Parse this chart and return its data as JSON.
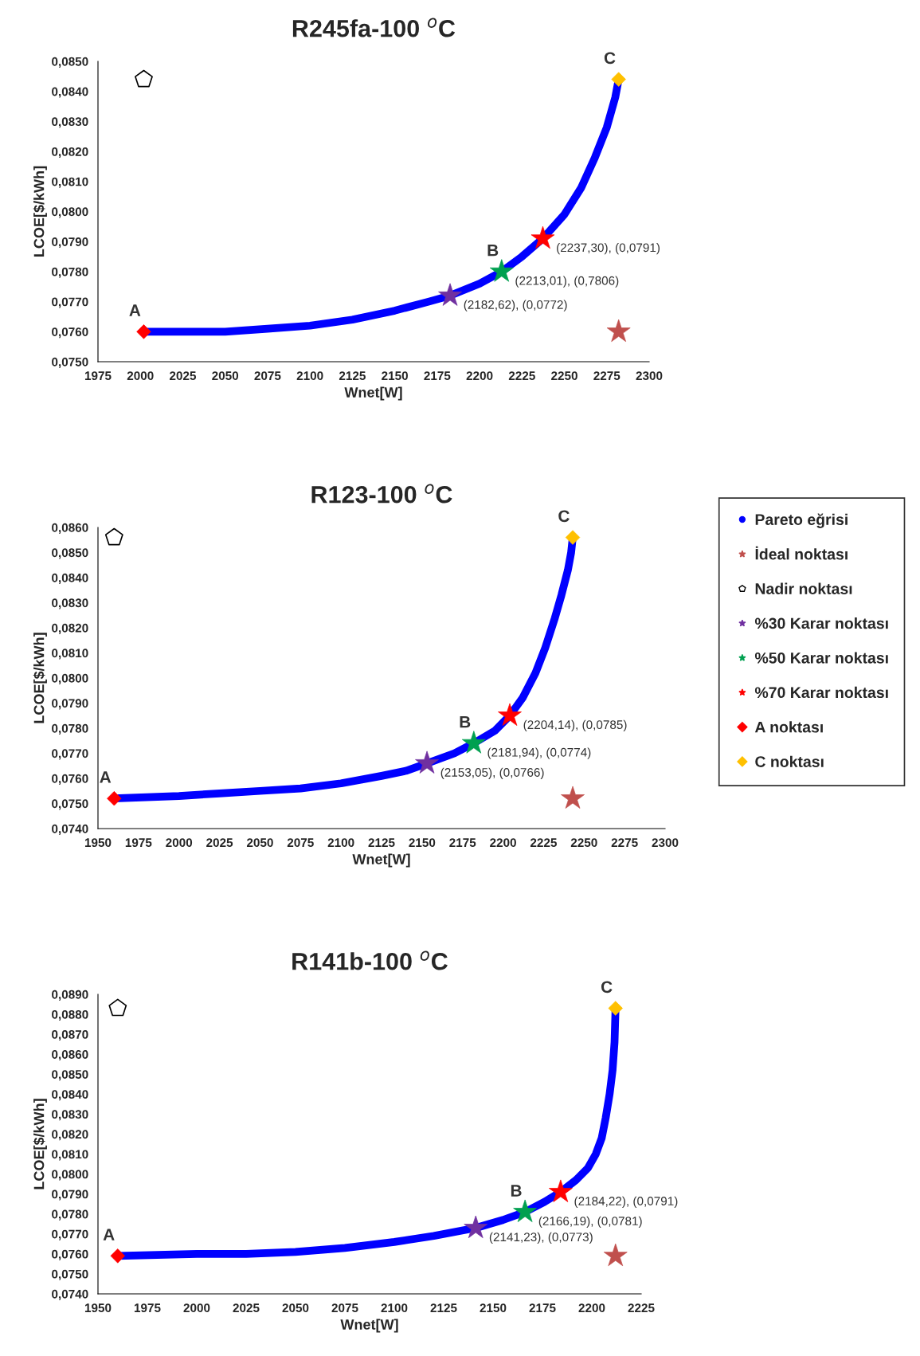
{
  "chart_data": [
    {
      "type": "line",
      "title": "R245fa-100 $^{o}$C",
      "xlabel": "Wnet[W]",
      "ylabel": "LCOE[$/kWh]",
      "xlim": [
        1975,
        2300
      ],
      "xticks": [
        1975,
        2000,
        2025,
        2050,
        2075,
        2100,
        2125,
        2150,
        2175,
        2200,
        2225,
        2250,
        2275,
        2300
      ],
      "ylim": [
        0.075,
        0.085
      ],
      "yticks": [
        {
          "value": 0.075,
          "label": "0,0750"
        },
        {
          "value": 0.076,
          "label": "0,0760"
        },
        {
          "value": 0.077,
          "label": "0,0770"
        },
        {
          "value": 0.078,
          "label": "0,0780"
        },
        {
          "value": 0.079,
          "label": "0,0790"
        },
        {
          "value": 0.08,
          "label": "0,0800"
        },
        {
          "value": 0.081,
          "label": "0,0810"
        },
        {
          "value": 0.082,
          "label": "0,0820"
        },
        {
          "value": 0.083,
          "label": "0,0830"
        },
        {
          "value": 0.084,
          "label": "0,0840"
        },
        {
          "value": 0.085,
          "label": "0,0850"
        }
      ],
      "grid": false,
      "legend": false,
      "series": [
        {
          "color": "#0000ff",
          "marker": "none",
          "x": [
            2002,
            2025,
            2050,
            2075,
            2100,
            2125,
            2150,
            2170,
            2182.62,
            2200,
            2213.01,
            2225,
            2237.3,
            2250,
            2260,
            2268,
            2275,
            2280,
            2282
          ],
          "values": [
            0.076,
            0.076,
            0.076,
            0.0761,
            0.0762,
            0.0764,
            0.0767,
            0.077,
            0.0772,
            0.0776,
            0.078,
            0.0785,
            0.0791,
            0.0799,
            0.0808,
            0.0818,
            0.0828,
            0.0838,
            0.0844
          ]
        },
        {
          "type": "scatter",
          "color": "#c0504d",
          "marker": "star",
          "x": [
            2282
          ],
          "values": [
            0.076
          ]
        },
        {
          "type": "scatter",
          "color": "#000000",
          "x": [
            2002
          ],
          "values": [
            0.0844
          ]
        },
        {
          "type": "scatter",
          "color": "#7030a0",
          "marker": "star",
          "x": [
            2182.62
          ],
          "values": [
            0.0772
          ]
        },
        {
          "type": "scatter",
          "color": "#00a050",
          "marker": "star",
          "x": [
            2213.01
          ],
          "values": [
            0.078
          ]
        },
        {
          "type": "scatter",
          "color": "#ff0000",
          "marker": "star",
          "x": [
            2237.3
          ],
          "values": [
            0.0791
          ]
        },
        {
          "type": "scatter",
          "color": "#ff0000",
          "marker": "diamond",
          "x": [
            2002
          ],
          "values": [
            0.076
          ]
        },
        {
          "type": "scatter",
          "color": "#ffc000",
          "marker": "diamond",
          "x": [
            2282
          ],
          "values": [
            0.0844
          ]
        }
      ],
      "annotations": [
        {
          "text": "A",
          "x": 2002,
          "y": 0.076
        },
        {
          "text": "B",
          "x": 2213.01,
          "y": 0.078
        },
        {
          "text": "C",
          "x": 2282,
          "y": 0.0844
        },
        {
          "text": "(2182,62), (0,0772)",
          "x": 2182.62,
          "y": 0.0772
        },
        {
          "text": "(2213,01), (0,7806)",
          "x": 2213.01,
          "y": 0.078
        },
        {
          "text": "(2237,30), (0,0791)",
          "x": 2237.3,
          "y": 0.0791
        }
      ]
    },
    {
      "type": "line",
      "title": "R123-100 $^{o}$C",
      "xlabel": "Wnet[W]",
      "ylabel": "LCOE[$/kWh]",
      "xlim": [
        1950,
        2300
      ],
      "xticks": [
        1950,
        1975,
        2000,
        2025,
        2050,
        2075,
        2100,
        2125,
        2150,
        2175,
        2200,
        2225,
        2250,
        2275,
        2300
      ],
      "ylim": [
        0.074,
        0.086
      ],
      "yticks": [
        {
          "value": 0.074,
          "label": "0,0740"
        },
        {
          "value": 0.075,
          "label": "0,0750"
        },
        {
          "value": 0.076,
          "label": "0,0760"
        },
        {
          "value": 0.077,
          "label": "0,0770"
        },
        {
          "value": 0.078,
          "label": "0,0780"
        },
        {
          "value": 0.079,
          "label": "0,0790"
        },
        {
          "value": 0.08,
          "label": "0,0800"
        },
        {
          "value": 0.081,
          "label": "0,0810"
        },
        {
          "value": 0.082,
          "label": "0,0820"
        },
        {
          "value": 0.083,
          "label": "0,0830"
        },
        {
          "value": 0.084,
          "label": "0,0840"
        },
        {
          "value": 0.085,
          "label": "0,0850"
        },
        {
          "value": 0.086,
          "label": "0,0860"
        }
      ],
      "grid": false,
      "legend": "right",
      "series": [
        {
          "name": "Pareto eğrisi",
          "color": "#0000ff",
          "marker": "none",
          "x": [
            1960,
            2000,
            2025,
            2050,
            2075,
            2100,
            2125,
            2140,
            2153.05,
            2170,
            2181.94,
            2195,
            2204.14,
            2212,
            2220,
            2226,
            2232,
            2236,
            2240,
            2242,
            2243
          ],
          "values": [
            0.0752,
            0.0753,
            0.0754,
            0.0755,
            0.0756,
            0.0758,
            0.0761,
            0.0763,
            0.0766,
            0.077,
            0.0774,
            0.0779,
            0.0785,
            0.0792,
            0.0802,
            0.0812,
            0.0824,
            0.0833,
            0.0843,
            0.085,
            0.0856
          ]
        },
        {
          "name": "İdeal noktası",
          "type": "scatter",
          "color": "#c0504d",
          "marker": "star",
          "x": [
            2243
          ],
          "values": [
            0.0752
          ]
        },
        {
          "name": "Nadir noktası",
          "type": "scatter",
          "color": "#000000",
          "x": [
            1960
          ],
          "values": [
            0.0856
          ]
        },
        {
          "name": "%30 Karar noktası",
          "type": "scatter",
          "color": "#7030a0",
          "marker": "star",
          "x": [
            2153.05
          ],
          "values": [
            0.0766
          ]
        },
        {
          "name": "%50 Karar noktası",
          "type": "scatter",
          "color": "#00a050",
          "marker": "star",
          "x": [
            2181.94
          ],
          "values": [
            0.0774
          ]
        },
        {
          "name": "%70 Karar noktası",
          "type": "scatter",
          "color": "#ff0000",
          "marker": "star",
          "x": [
            2204.14
          ],
          "values": [
            0.0785
          ]
        },
        {
          "name": "A noktası",
          "type": "scatter",
          "color": "#ff0000",
          "marker": "diamond",
          "x": [
            1960
          ],
          "values": [
            0.0752
          ]
        },
        {
          "name": "C noktası",
          "type": "scatter",
          "color": "#ffc000",
          "marker": "diamond",
          "x": [
            2243
          ],
          "values": [
            0.0856
          ]
        }
      ],
      "annotations": [
        {
          "text": "A",
          "x": 1960,
          "y": 0.0752
        },
        {
          "text": "B",
          "x": 2181.94,
          "y": 0.0774
        },
        {
          "text": "C",
          "x": 2243,
          "y": 0.0856
        },
        {
          "text": "(2153,05), (0,0766)",
          "x": 2153.05,
          "y": 0.0766
        },
        {
          "text": "(2181,94), (0,0774)",
          "x": 2181.94,
          "y": 0.0774
        },
        {
          "text": "(2204,14), (0,0785)",
          "x": 2204.14,
          "y": 0.0785
        }
      ]
    },
    {
      "type": "line",
      "title": "R141b-100 $^{o}$C",
      "xlabel": "Wnet[W]",
      "ylabel": "LCOE[$/kWh]",
      "xlim": [
        1950,
        2225
      ],
      "xticks": [
        1950,
        1975,
        2000,
        2025,
        2050,
        2075,
        2100,
        2125,
        2150,
        2175,
        2200,
        2225
      ],
      "ylim": [
        0.074,
        0.089
      ],
      "yticks": [
        {
          "value": 0.074,
          "label": "0,0740"
        },
        {
          "value": 0.075,
          "label": "0,0750"
        },
        {
          "value": 0.076,
          "label": "0,0760"
        },
        {
          "value": 0.077,
          "label": "0,0770"
        },
        {
          "value": 0.078,
          "label": "0,0780"
        },
        {
          "value": 0.079,
          "label": "0,0790"
        },
        {
          "value": 0.08,
          "label": "0,0800"
        },
        {
          "value": 0.081,
          "label": "0,0810"
        },
        {
          "value": 0.082,
          "label": "0,0820"
        },
        {
          "value": 0.083,
          "label": "0,0830"
        },
        {
          "value": 0.084,
          "label": "0,0840"
        },
        {
          "value": 0.085,
          "label": "0,0850"
        },
        {
          "value": 0.086,
          "label": "0,0860"
        },
        {
          "value": 0.087,
          "label": "0,0870"
        },
        {
          "value": 0.088,
          "label": "0,0880"
        },
        {
          "value": 0.089,
          "label": "0,0890"
        }
      ],
      "grid": false,
      "legend": false,
      "series": [
        {
          "color": "#0000ff",
          "marker": "none",
          "x": [
            1960,
            2000,
            2025,
            2050,
            2075,
            2100,
            2120,
            2141.23,
            2155,
            2166.19,
            2176,
            2184.22,
            2192,
            2198,
            2202,
            2205,
            2207,
            2209,
            2210.5,
            2211.5,
            2212
          ],
          "values": [
            0.0759,
            0.076,
            0.076,
            0.0761,
            0.0763,
            0.0766,
            0.0769,
            0.0773,
            0.0777,
            0.0781,
            0.0786,
            0.0791,
            0.0797,
            0.0803,
            0.081,
            0.0818,
            0.0828,
            0.084,
            0.0852,
            0.0866,
            0.0883
          ]
        },
        {
          "type": "scatter",
          "color": "#c0504d",
          "marker": "star",
          "x": [
            2212
          ],
          "values": [
            0.0759
          ]
        },
        {
          "type": "scatter",
          "color": "#000000",
          "x": [
            1960
          ],
          "values": [
            0.0883
          ]
        },
        {
          "type": "scatter",
          "color": "#7030a0",
          "marker": "star",
          "x": [
            2141.23
          ],
          "values": [
            0.0773
          ]
        },
        {
          "type": "scatter",
          "color": "#00a050",
          "marker": "star",
          "x": [
            2166.19
          ],
          "values": [
            0.0781
          ]
        },
        {
          "type": "scatter",
          "color": "#ff0000",
          "marker": "star",
          "x": [
            2184.22
          ],
          "values": [
            0.0791
          ]
        },
        {
          "type": "scatter",
          "color": "#ff0000",
          "marker": "diamond",
          "x": [
            1960
          ],
          "values": [
            0.0759
          ]
        },
        {
          "type": "scatter",
          "color": "#ffc000",
          "marker": "diamond",
          "x": [
            2212
          ],
          "values": [
            0.0883
          ]
        }
      ],
      "annotations": [
        {
          "text": "A",
          "x": 1960,
          "y": 0.0759
        },
        {
          "text": "B",
          "x": 2166.19,
          "y": 0.0781
        },
        {
          "text": "C",
          "x": 2212,
          "y": 0.0883
        },
        {
          "text": "(2141,23), (0,0773)",
          "x": 2141.23,
          "y": 0.0773
        },
        {
          "text": "(2166,19), (0,0781)",
          "x": 2166.19,
          "y": 0.0781
        },
        {
          "text": "(2184,22), (0,0791)",
          "x": 2184.22,
          "y": 0.0791
        }
      ]
    }
  ]
}
